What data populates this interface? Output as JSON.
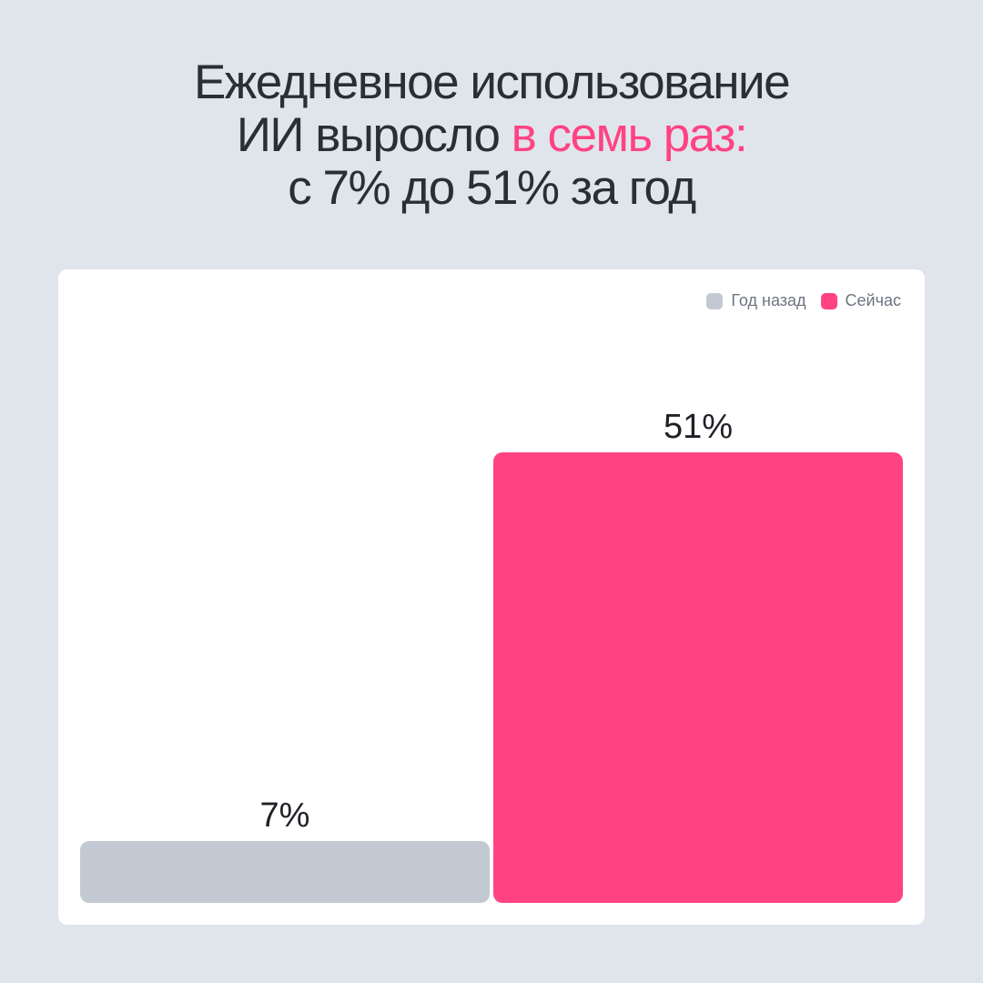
{
  "title": {
    "line1": "Ежедневное использование",
    "line2_prefix": "ИИ выросло ",
    "line2_highlight": "в семь раз:",
    "line3": "с 7% до 51% за год"
  },
  "colors": {
    "background": "#e0e5ec",
    "accent": "#ff4382",
    "past": "#c3c9d3",
    "text": "#2a2e35"
  },
  "chart_data": {
    "type": "bar",
    "categories": [
      "Год назад",
      "Сейчас"
    ],
    "values": [
      7,
      51
    ],
    "data_labels": [
      "7%",
      "51%"
    ],
    "colors": [
      "#c3c9d3",
      "#ff4382"
    ],
    "legend": [
      "Год назад",
      "Сейчас"
    ],
    "legend_position": "top-right",
    "ylim": [
      0,
      51
    ],
    "grid": false,
    "axes_visible": false
  }
}
